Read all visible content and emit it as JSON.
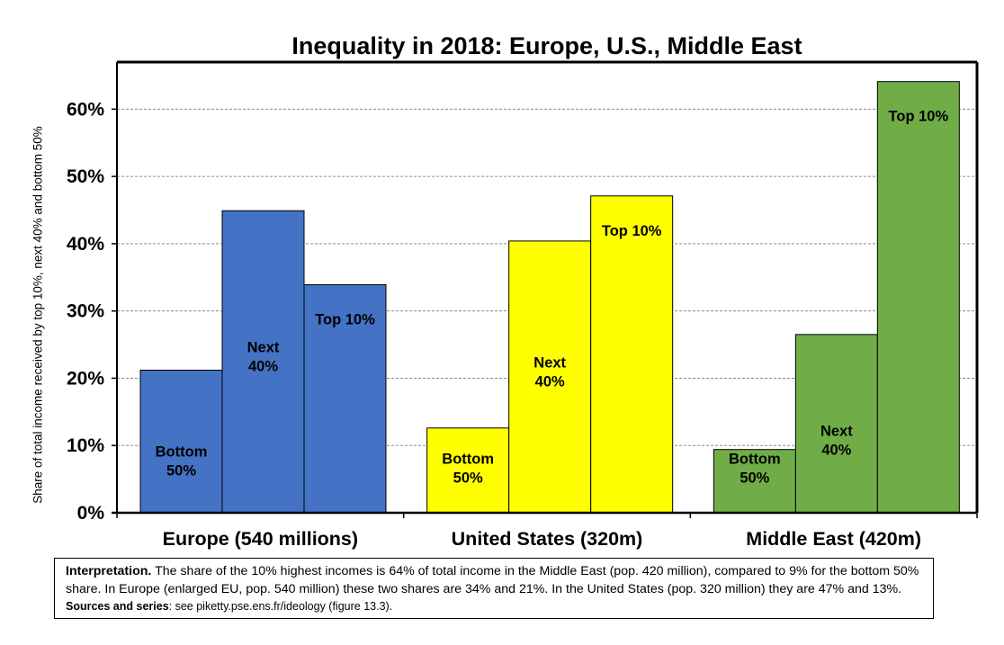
{
  "chart_data": {
    "type": "bar",
    "title": "Inequality in 2018: Europe, U.S., Middle East",
    "ylabel": "Share of total income received by top 10%, next 40% and bottom 50%",
    "ylim": [
      0,
      0.67
    ],
    "yticks": [
      0,
      0.1,
      0.2,
      0.3,
      0.4,
      0.5,
      0.6
    ],
    "ytick_labels": [
      "0%",
      "10%",
      "20%",
      "30%",
      "40%",
      "50%",
      "60%"
    ],
    "grid": true,
    "groups": [
      {
        "name": "Europe (540 millions)",
        "color": "#4472C4",
        "bars": [
          {
            "label": [
              "Bottom",
              "50%"
            ],
            "value": 0.212
          },
          {
            "label": [
              "Next",
              "40%"
            ],
            "value": 0.449
          },
          {
            "label": [
              "Top 10%"
            ],
            "value": 0.339
          }
        ]
      },
      {
        "name": "United States (320m)",
        "color": "#FFFF00",
        "bars": [
          {
            "label": [
              "Bottom",
              "50%"
            ],
            "value": 0.126
          },
          {
            "label": [
              "Next",
              "40%"
            ],
            "value": 0.404
          },
          {
            "label": [
              "Top 10%"
            ],
            "value": 0.471
          }
        ]
      },
      {
        "name": "Middle East (420m)",
        "color": "#70AD47",
        "bars": [
          {
            "label": [
              "Bottom",
              "50%"
            ],
            "value": 0.094
          },
          {
            "label": [
              "Next",
              "40%"
            ],
            "value": 0.265
          },
          {
            "label": [
              "Top 10%"
            ],
            "value": 0.641
          }
        ]
      }
    ]
  },
  "note": {
    "lead": "Interpretation.",
    "text": " The share of the 10% highest incomes is 64% of total income in the Middle East (pop. 420 million), compared to 9% for the bottom 50% share. In Europe (enlarged EU, pop. 540 million) these two shares are 34% and 21%. In the United States (pop. 320 million) they are 47% and 13%. ",
    "sources_label": "Sources and series",
    "sources_text": ": see piketty.pse.ens.fr/ideology (figure 13.3)."
  }
}
